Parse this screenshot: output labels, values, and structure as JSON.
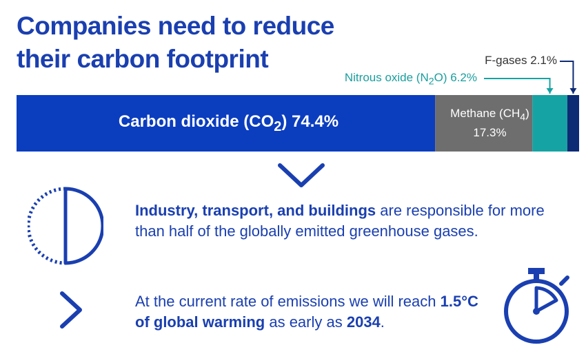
{
  "title": {
    "line1": "Companies need to reduce",
    "line2": "their carbon footprint"
  },
  "chart_data": {
    "type": "bar",
    "stacked": true,
    "orientation": "horizontal",
    "series": [
      {
        "name": "Carbon dioxide (CO2)",
        "value": 74.4,
        "label": "74.4%",
        "color": "#0b3dbf"
      },
      {
        "name": "Methane (CH4)",
        "value": 17.3,
        "label": "17.3%",
        "color": "#6e6e6e"
      },
      {
        "name": "Nitrous oxide (N2O)",
        "value": 6.2,
        "label": "6.2%",
        "color": "#16a3a3"
      },
      {
        "name": "F-gases",
        "value": 2.1,
        "label": "2.1%",
        "color": "#0d2a75"
      }
    ]
  },
  "labels": {
    "co2_name": "Carbon dioxide (CO",
    "co2_sub": "2",
    "co2_tail": ")",
    "co2_value": "74.4%",
    "ch4_name": "Methane (CH",
    "ch4_sub": "4",
    "ch4_tail": ")",
    "ch4_value": "17.3%",
    "n2o_name": "Nitrous oxide (N",
    "n2o_sub": "2",
    "n2o_tail": "O)",
    "n2o_value": "6.2%",
    "fgas_name": "F-gases",
    "fgas_value": "2.1%"
  },
  "facts": {
    "fact1_bold": "Industry, transport, and buildings",
    "fact1_rest": " are responsible for more than half of the globally emitted greenhouse gases.",
    "fact2_start": "At the current rate of emissions we will reach ",
    "fact2_bold1": "1.5°C of global warming",
    "fact2_mid": " as early as ",
    "fact2_bold2": "2034",
    "fact2_end": "."
  },
  "icons": {
    "divider": "chevron-down-icon",
    "half_circle": "half-circle-icon",
    "arrow": "chevron-right-icon",
    "timer": "stopwatch-icon"
  },
  "colors": {
    "brand_blue": "#1a3fb0",
    "teal": "#1a9e9e"
  }
}
